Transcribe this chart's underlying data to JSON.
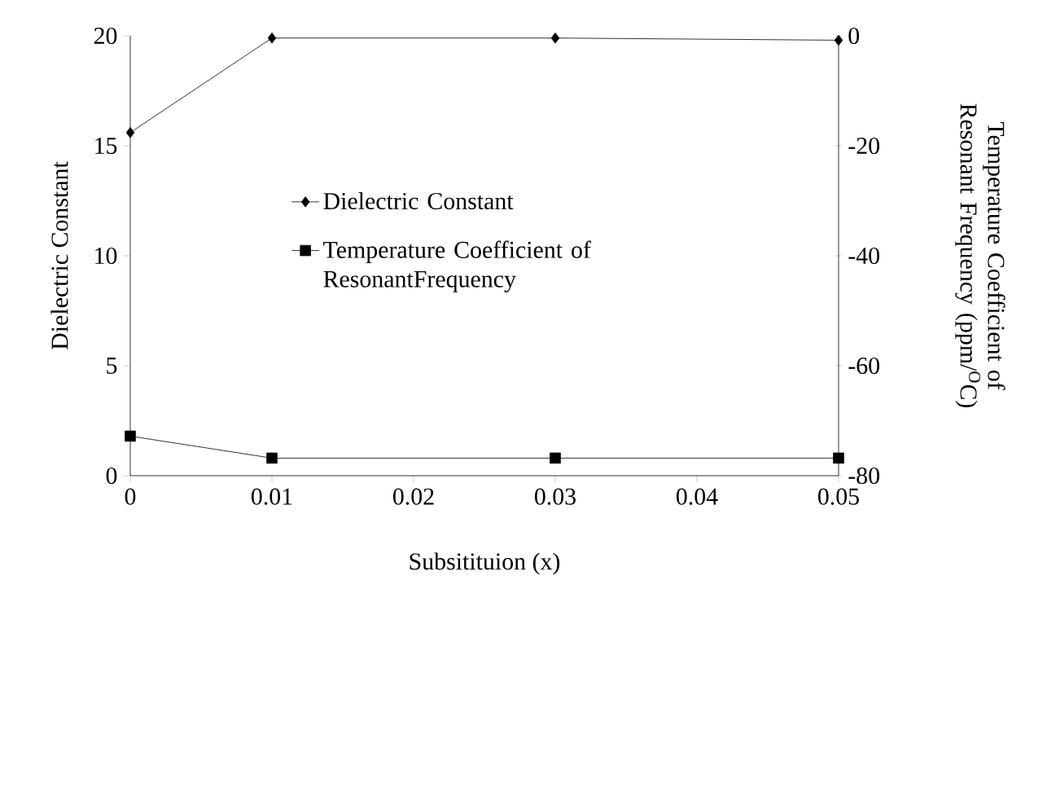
{
  "chart_data": {
    "type": "line",
    "xlabel": "Subsitituion (x)",
    "ylabel": "Dielectric Constant",
    "y2label": "Temperature Coefficient of Resonant Frequency (ppm/$^{O}$C)",
    "x": [
      0,
      0.01,
      0.03,
      0.05
    ],
    "series": [
      {
        "name": "Dielectric Constant",
        "color": "#000000",
        "marker": "diamond",
        "values": [
          15.6,
          19.9,
          19.9,
          19.8
        ]
      },
      {
        "name": "Temperature Coefficient of ResonantFrequency",
        "color": "#000000",
        "marker": "square",
        "axis": "y2",
        "values": [
          -72.8,
          -76.8,
          -76.8,
          -76.8
        ]
      }
    ],
    "xlim": [
      0,
      0.05
    ],
    "xticks": [
      0,
      0.01,
      0.02,
      0.03,
      0.04,
      0.05
    ],
    "ylim": [
      0,
      20
    ],
    "yticks": [
      0,
      5,
      10,
      15,
      20
    ],
    "y2lim": [
      -80,
      0
    ],
    "y2ticks": [
      0,
      -20,
      -40,
      -60,
      -80
    ],
    "legend": "left",
    "line_style": "solid"
  }
}
